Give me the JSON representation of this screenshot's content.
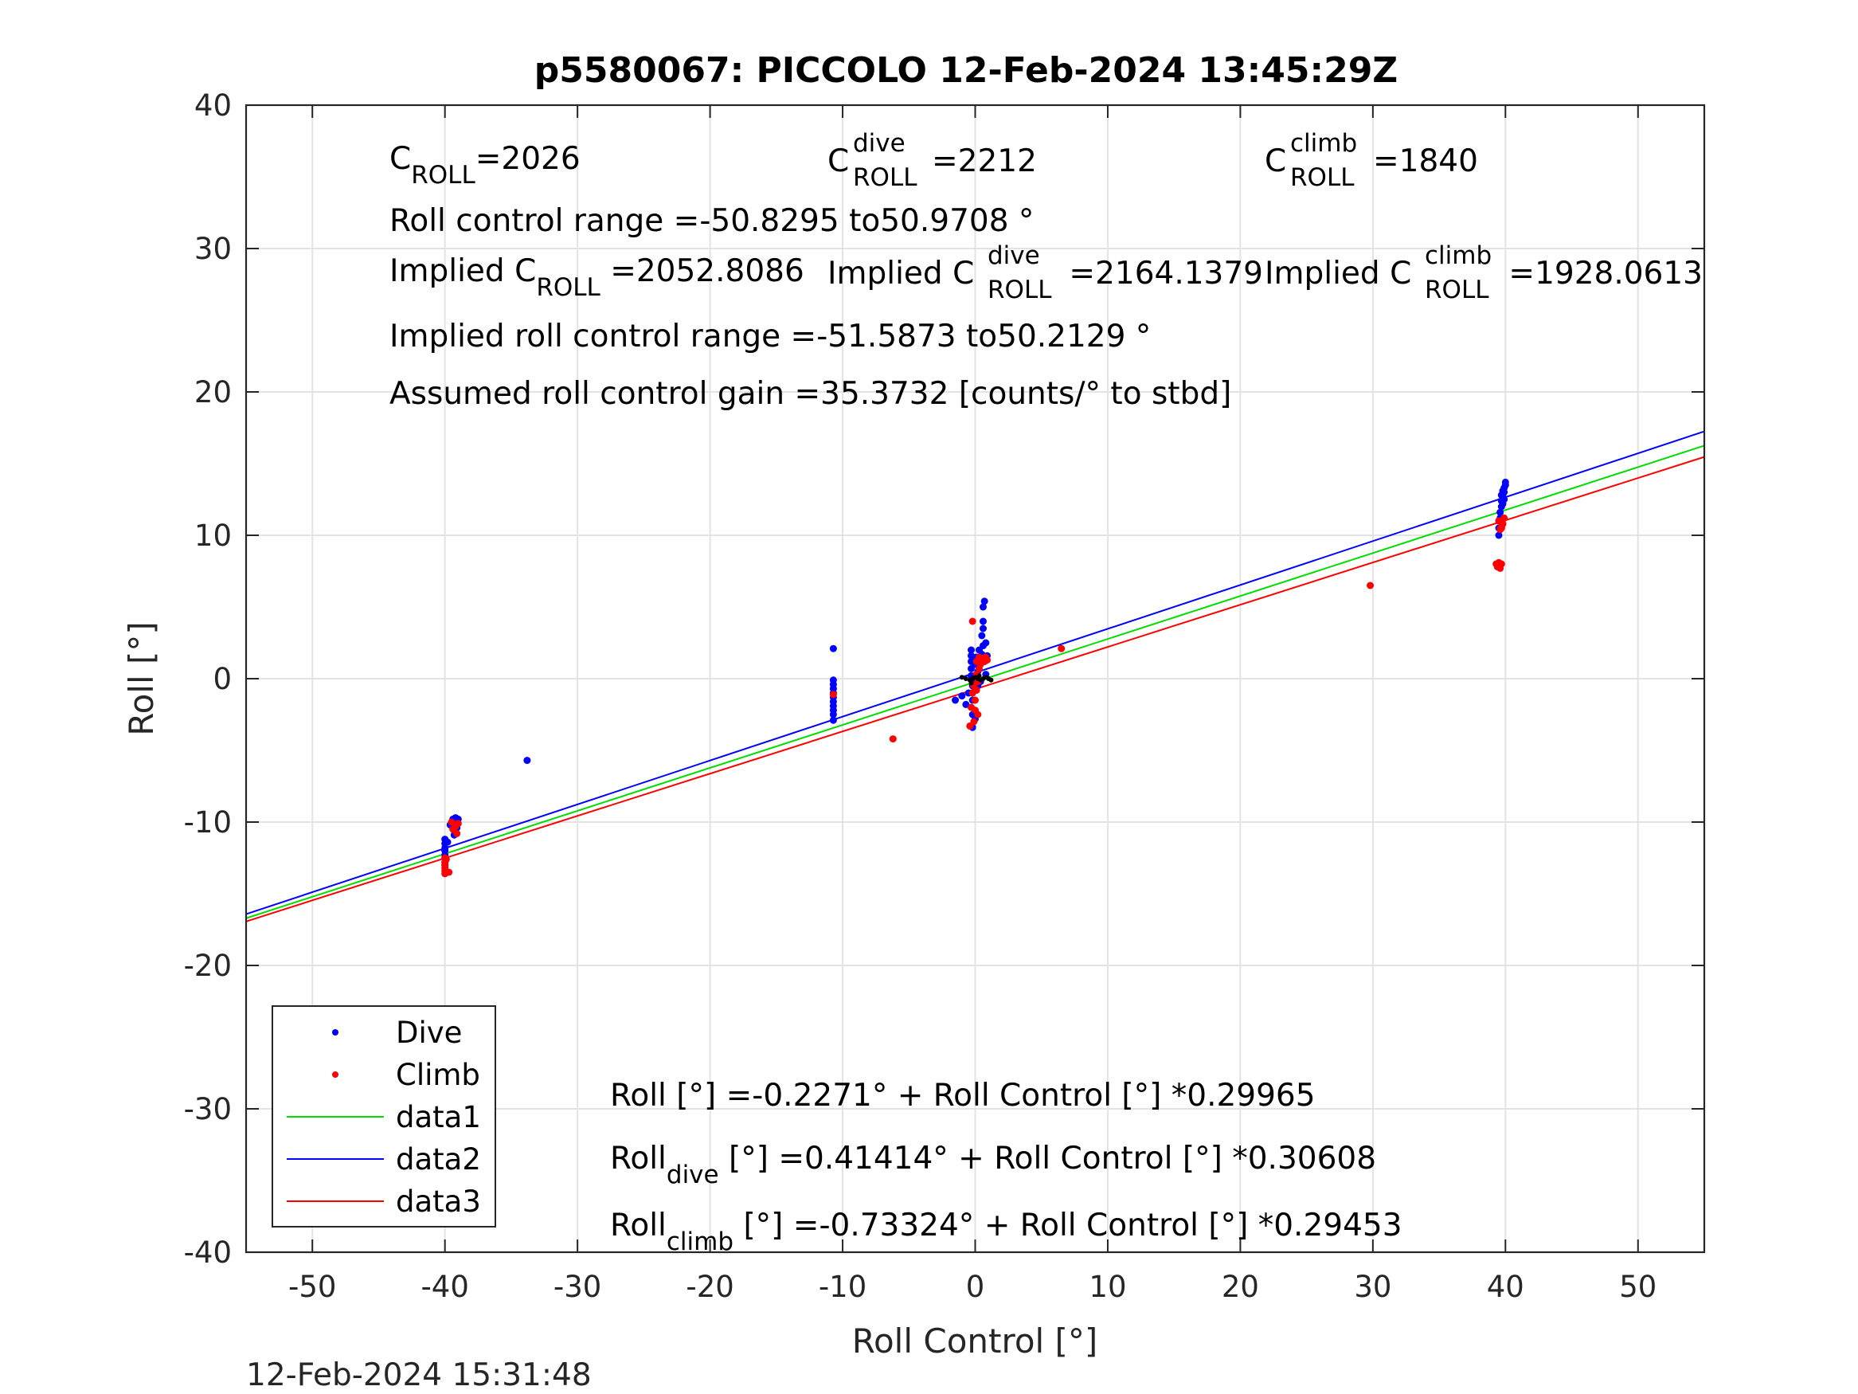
{
  "chart_data": {
    "type": "scatter",
    "title": "p5580067: PICCOLO 12-Feb-2024 13:45:29Z",
    "xlabel": "Roll Control [°]",
    "ylabel": "Roll [°]",
    "xlim": [
      -55,
      55
    ],
    "ylim": [
      -40,
      40
    ],
    "xticks": [
      "-50",
      "-40",
      "-30",
      "-20",
      "-10",
      "0",
      "10",
      "20",
      "30",
      "40",
      "50"
    ],
    "yticks": [
      "-40",
      "-30",
      "-20",
      "-10",
      "0",
      "10",
      "20",
      "30",
      "40"
    ],
    "grid": true,
    "legend_position": "bottom-left",
    "timestamp": "12-Feb-2024 15:31:48",
    "colors": {
      "dive": "#0000ff",
      "climb": "#ff0000",
      "data1": "#00dd00",
      "data2": "#0000ff",
      "data3": "#ff0000",
      "grid": "#e3e3e3"
    },
    "annotations": {
      "c_roll": {
        "base": "C",
        "sub": "ROLL",
        "value": "=2026"
      },
      "c_roll_dive": {
        "base": "C",
        "sup": "dive",
        "sub": "ROLL",
        "value": "=2212"
      },
      "c_roll_climb": {
        "base": "C",
        "sup": "climb",
        "sub": "ROLL",
        "value": "=1840"
      },
      "roll_range": "Roll control range =-50.8295 to50.9708 °",
      "implied_c_roll": {
        "base": "Implied C",
        "sub": "ROLL",
        "value": " =2052.8086"
      },
      "implied_c_roll_dive": {
        "base": "Implied C",
        "sup": "dive",
        "sub": "ROLL",
        "value": " =2164.1379"
      },
      "implied_c_roll_climb": {
        "base": "Implied C",
        "sup": "climb",
        "sub": "ROLL",
        "value": " =1928.0613"
      },
      "implied_range": "Implied roll control range =-51.5873 to50.2129 °",
      "gain": "Assumed roll control gain =35.3732 [counts/° to stbd]",
      "fit_all": "Roll [°] =-0.2271° + Roll Control [°] *0.29965",
      "fit_dive": {
        "base": "Roll",
        "sub": "dive",
        "value": " [°] =0.41414° + Roll Control [°] *0.30608"
      },
      "fit_climb": {
        "base": "Roll",
        "sub": "climb",
        "value": " [°] =-0.73324° + Roll Control [°] *0.29453"
      }
    },
    "series": [
      {
        "name": "Dive",
        "type": "scatter",
        "color": "#0000ff",
        "x": [
          -40,
          -40,
          -40,
          -40,
          -40,
          -40,
          -40,
          -40,
          -39.8,
          -39.6,
          -39.4,
          -39.2,
          -39.0,
          -39.1,
          -39.3,
          -33.8,
          -10.7,
          -10.7,
          -10.7,
          -10.7,
          -10.7,
          -10.7,
          -10.7,
          -10.7,
          -10.7,
          -10.7,
          -10.7,
          -1.5,
          -1.0,
          -0.7,
          -0.5,
          -0.3,
          -0.3,
          -0.3,
          -0.3,
          -0.3,
          -0.2,
          -0.2,
          -0.2,
          -0.2,
          -0.1,
          0.0,
          0.0,
          0.0,
          0.1,
          0.2,
          0.2,
          0.3,
          0.3,
          0.4,
          0.5,
          0.5,
          0.6,
          0.6,
          0.6,
          0.6,
          0.7,
          0.7,
          0.8,
          0.8,
          0.9,
          39.5,
          39.5,
          39.5,
          39.6,
          39.6,
          39.7,
          39.7,
          39.7,
          39.8,
          39.8,
          39.8,
          39.9,
          39.9,
          39.9,
          40.0,
          40.0
        ],
        "y": [
          -11.2,
          -11.5,
          -11.8,
          -12.0,
          -12.3,
          -12.5,
          -12.8,
          -13.0,
          -11.4,
          -10.2,
          -9.8,
          -9.7,
          -9.8,
          -10.4,
          -10.9,
          -5.7,
          2.1,
          -0.1,
          -0.4,
          -0.7,
          -1.0,
          -1.3,
          -1.6,
          -1.9,
          -2.2,
          -2.5,
          -2.9,
          -1.5,
          -1.2,
          -1.8,
          -1.0,
          0.2,
          0.7,
          1.2,
          1.6,
          2.0,
          -0.5,
          -1.5,
          -2.5,
          -3.4,
          0.0,
          1.0,
          -0.8,
          -2.8,
          1.5,
          0.5,
          -0.5,
          2.0,
          1.0,
          -0.2,
          3.0,
          1.7,
          2.3,
          3.5,
          4.0,
          5.0,
          5.4,
          1.2,
          2.5,
          0.3,
          1.6,
          10.0,
          10.5,
          11.0,
          11.2,
          11.6,
          12.0,
          12.4,
          12.8,
          12.2,
          12.7,
          13.1,
          13.3,
          13.0,
          12.5,
          13.5,
          13.7
        ]
      },
      {
        "name": "Climb",
        "type": "scatter",
        "color": "#ff0000",
        "x": [
          -40,
          -40,
          -40,
          -40,
          -40,
          -40,
          -39.9,
          -39.7,
          -39.5,
          -39.2,
          -39.0,
          -39.1,
          -39.4,
          -10.7,
          -6.2,
          -0.4,
          -0.3,
          -0.2,
          -0.1,
          -0.1,
          0.0,
          0.0,
          0.1,
          0.1,
          0.1,
          0.2,
          0.2,
          0.3,
          0.3,
          0.4,
          0.4,
          0.5,
          0.6,
          0.7,
          0.8,
          0.9,
          -0.2,
          6.5,
          29.8,
          39.3,
          39.4,
          39.5,
          39.6,
          39.7,
          39.7,
          39.8,
          39.9,
          39.5,
          39.6,
          39.7
        ],
        "y": [
          -12.5,
          -12.8,
          -13.0,
          -13.2,
          -13.4,
          -13.6,
          -12.6,
          -13.5,
          -10.0,
          -10.3,
          -10.1,
          -10.8,
          -10.5,
          -1.1,
          -4.2,
          -3.3,
          -2.0,
          -1.0,
          -0.5,
          -3.0,
          -1.5,
          -2.2,
          0.3,
          -0.8,
          1.2,
          -0.2,
          -2.5,
          0.7,
          1.5,
          1.0,
          1.3,
          1.2,
          1.4,
          1.2,
          1.5,
          1.3,
          4.0,
          2.1,
          6.5,
          8.0,
          7.8,
          8.1,
          7.7,
          8.0,
          10.5,
          10.8,
          11.2,
          11.0,
          10.4,
          10.6
        ]
      },
      {
        "name": "data1",
        "type": "line",
        "color": "#00dd00",
        "x": [
          -55,
          55
        ],
        "y": [
          -16.708,
          16.254
        ]
      },
      {
        "name": "data2",
        "type": "line",
        "color": "#0000ff",
        "x": [
          -55,
          55
        ],
        "y": [
          -16.42,
          17.249
        ]
      },
      {
        "name": "data3",
        "type": "line",
        "color": "#ff0000",
        "x": [
          -55,
          55
        ],
        "y": [
          -16.932,
          15.466
        ]
      }
    ],
    "center_markers": {
      "color": "#000000",
      "x": [
        -1.0,
        -0.7,
        -0.4,
        -0.2,
        0.0,
        0.2,
        0.4,
        0.6,
        0.8,
        1.0,
        1.2,
        -0.3,
        0.3
      ],
      "y": [
        0.1,
        0.0,
        -0.1,
        0.0,
        0.1,
        0.0,
        -0.1,
        0.0,
        0.1,
        0.0,
        -0.1,
        -0.3,
        0.2
      ]
    }
  }
}
